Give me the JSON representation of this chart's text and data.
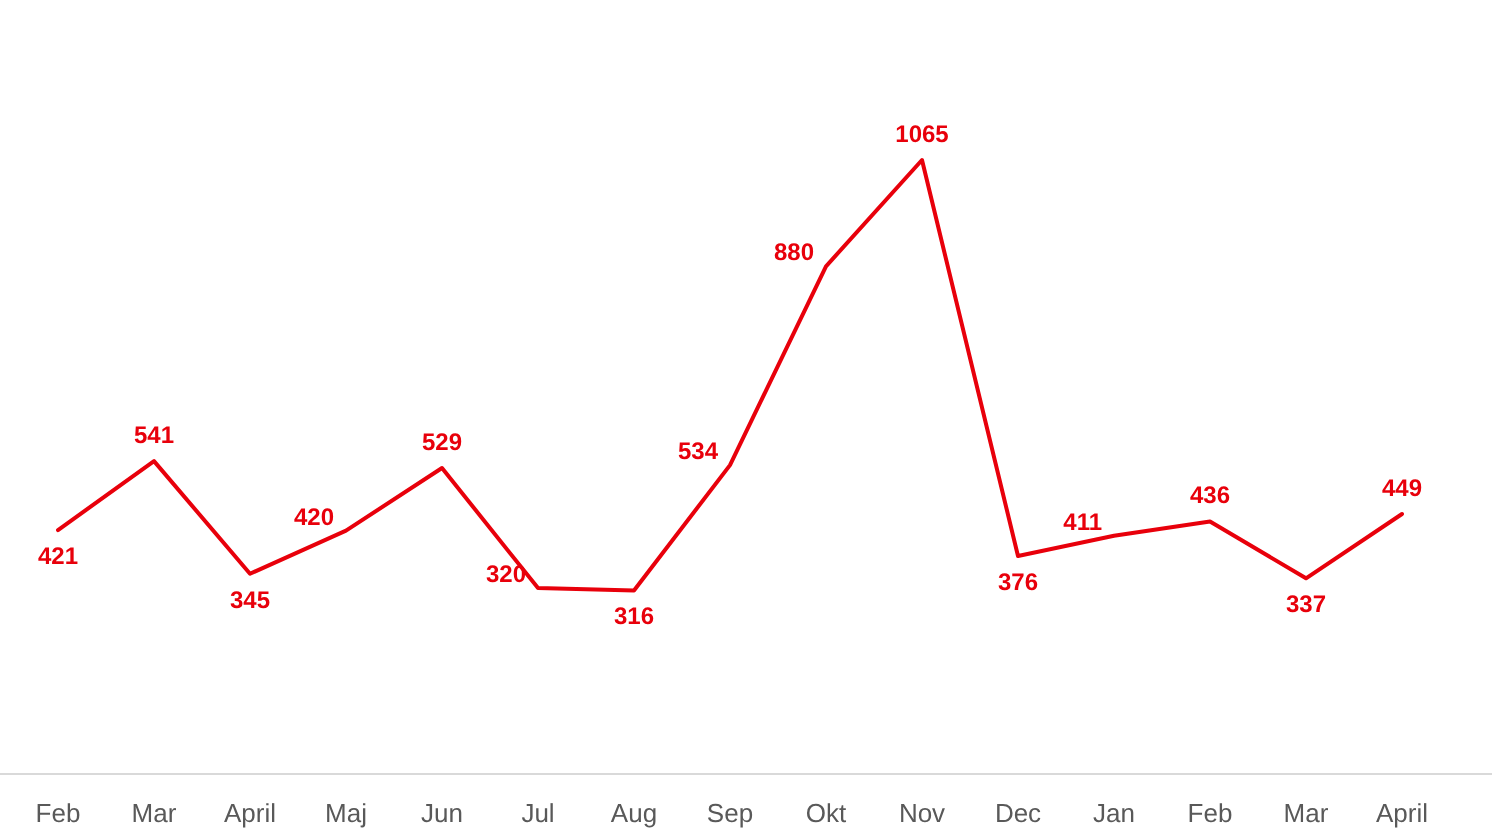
{
  "chart_data": {
    "type": "line",
    "categories": [
      "Feb",
      "Mar",
      "April",
      "Maj",
      "Jun",
      "Jul",
      "Aug",
      "Sep",
      "Okt",
      "Nov",
      "Dec",
      "Jan",
      "Feb",
      "Mar",
      "April"
    ],
    "series": [
      {
        "color": "#e8000b",
        "values": [
          421,
          541,
          345,
          420,
          529,
          320,
          316,
          534,
          880,
          1065,
          376,
          411,
          436,
          337,
          449
        ]
      }
    ],
    "data_labels": true,
    "tick_labels": "x",
    "line_style": "solid"
  }
}
